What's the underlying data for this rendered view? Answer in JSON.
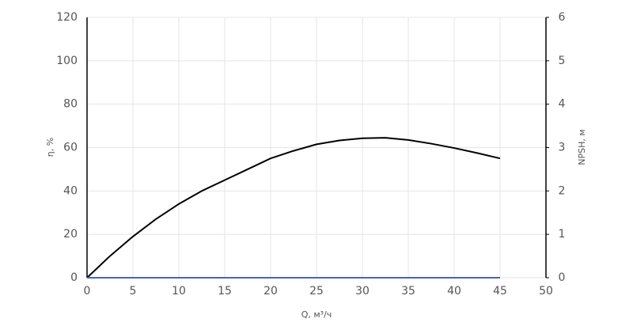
{
  "chart_data": {
    "type": "line",
    "x_label": "Q, м³/ч",
    "y_label": "η, %",
    "y2_label": "NPSH, м",
    "x": [
      0,
      2.5,
      5,
      7.5,
      10,
      12.5,
      15,
      17.5,
      20,
      22.5,
      25,
      27.5,
      30,
      32.5,
      35,
      37.5,
      40,
      42.5,
      45
    ],
    "series": [
      {
        "color": "#000000",
        "values": [
          0,
          10,
          19,
          27,
          34,
          40,
          45,
          50,
          55,
          58.5,
          61.5,
          63.3,
          64.3,
          64.5,
          63.5,
          61.8,
          59.8,
          57.5,
          55
        ]
      },
      {
        "color": "#4a63b8",
        "axis": "y2",
        "values": [
          0,
          0,
          0,
          0,
          0,
          0,
          0,
          0,
          0,
          0,
          0,
          0,
          0,
          0,
          0,
          0,
          0,
          0,
          0
        ]
      }
    ],
    "xlim": [
      0,
      50
    ],
    "xticks": [
      0,
      5,
      10,
      15,
      20,
      25,
      30,
      35,
      40,
      45,
      50
    ],
    "ylim": [
      0,
      120
    ],
    "yticks": [
      0,
      20,
      40,
      60,
      80,
      100,
      120
    ],
    "y2lim": [
      0,
      6
    ],
    "y2ticks": [
      0,
      1,
      2,
      3,
      4,
      5,
      6
    ],
    "grid": true
  }
}
